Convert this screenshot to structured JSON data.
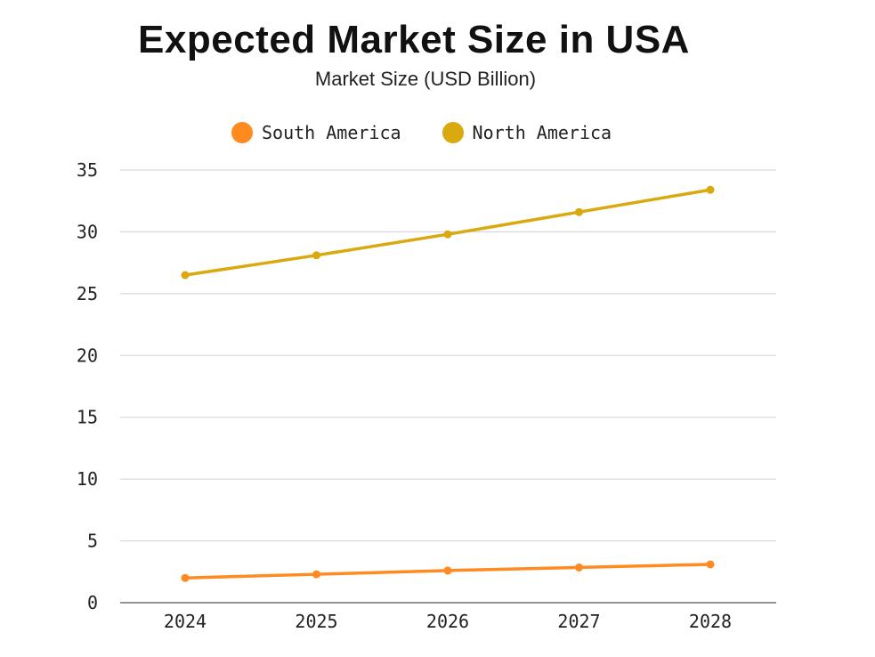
{
  "chart_data": {
    "type": "line",
    "title": "Expected Market Size in USA",
    "subtitle": "Market Size (USD Billion)",
    "categories": [
      "2024",
      "2025",
      "2026",
      "2027",
      "2028"
    ],
    "series": [
      {
        "name": "South America",
        "color": "#FF8A1F",
        "values": [
          2.0,
          2.3,
          2.6,
          2.85,
          3.1
        ]
      },
      {
        "name": "North America",
        "color": "#D9A90F",
        "values": [
          26.5,
          28.1,
          29.8,
          31.6,
          33.4
        ]
      }
    ],
    "ylim": [
      0,
      35
    ],
    "yticks": [
      0,
      5,
      10,
      15,
      20,
      25,
      30,
      35
    ],
    "grid": true,
    "legend_position": "top-center"
  }
}
